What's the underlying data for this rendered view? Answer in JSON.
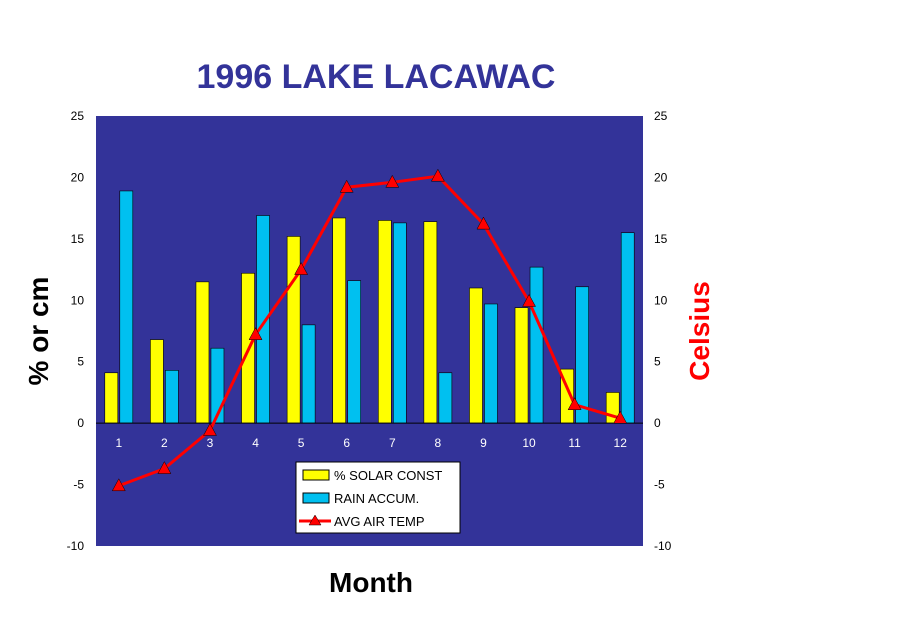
{
  "chart_data": {
    "type": "bar",
    "title": "1996 LAKE LACAWAC",
    "xlabel": "Month",
    "ylabel": "% or cm",
    "y2label": "Celsius",
    "ylim": [
      -10,
      25
    ],
    "y2lim": [
      -10,
      25
    ],
    "yticks": [
      "-10",
      "-5",
      "0",
      "5",
      "10",
      "15",
      "20",
      "25"
    ],
    "categories": [
      "1",
      "2",
      "3",
      "4",
      "5",
      "6",
      "7",
      "8",
      "9",
      "10",
      "11",
      "12"
    ],
    "grid": false,
    "legend_position": "bottom-center",
    "series": [
      {
        "name": "% SOLAR CONST",
        "type": "bar",
        "color": "#ffff00",
        "values": [
          4.1,
          6.8,
          11.5,
          12.2,
          15.2,
          16.7,
          16.5,
          16.4,
          11.0,
          9.4,
          4.4,
          2.5
        ]
      },
      {
        "name": "RAIN ACCUM.",
        "type": "bar",
        "color": "#00c0f0",
        "values": [
          18.9,
          4.3,
          6.1,
          16.9,
          8.0,
          11.6,
          16.3,
          4.1,
          9.7,
          12.7,
          11.1,
          15.5
        ]
      },
      {
        "name": "AVG AIR TEMP",
        "type": "line",
        "axis": "right",
        "color": "#ff0000",
        "marker": "triangle",
        "values": [
          -5.1,
          -3.7,
          -0.6,
          7.2,
          12.5,
          19.2,
          19.6,
          20.1,
          16.2,
          9.9,
          1.5,
          0.4
        ]
      }
    ],
    "colors": {
      "plot_background": "#333399",
      "title": "#333399",
      "y2label": "#ff0000"
    }
  }
}
